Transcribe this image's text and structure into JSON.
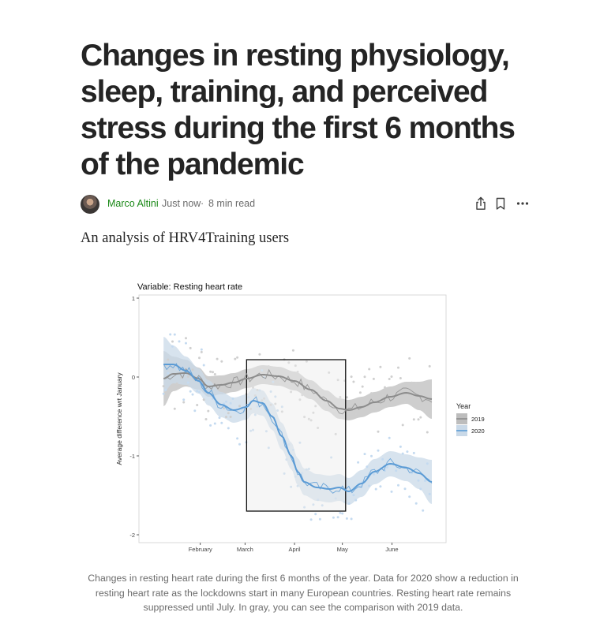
{
  "article": {
    "title": "Changes in resting physiology, sleep, training, and perceived stress during the first 6 months of the pandemic",
    "subtitle": "An analysis of HRV4Training users",
    "author": "Marco Altini",
    "published": "Just now",
    "separator": "·",
    "read_time": "8 min read",
    "caption": "Changes in resting heart rate during the first 6 months of the year. Data for 2020 show a reduction in resting heart rate as the lockdowns start in many European countries. Resting heart rate remains suppressed until July. In gray, you can see the comparison with 2019 data."
  },
  "actions": {
    "share_icon": "share-icon",
    "bookmark_icon": "bookmark-icon",
    "more_icon": "more-icon"
  },
  "chart_data": {
    "type": "line",
    "title": "Variable: Resting heart rate",
    "ylabel": "Average difference wrt January",
    "xlabel": "",
    "ylim": [
      -2,
      1
    ],
    "yticks": [
      1,
      0,
      -1,
      -2
    ],
    "xlim": [
      0,
      176
    ],
    "xticks": [
      {
        "label": "February",
        "x": 31
      },
      {
        "label": "March",
        "x": 59
      },
      {
        "label": "April",
        "x": 90
      },
      {
        "label": "May",
        "x": 120
      },
      {
        "label": "June",
        "x": 151
      }
    ],
    "grid": false,
    "legend": {
      "title": "Year",
      "position": "right"
    },
    "highlight_window": {
      "x": [
        60,
        122
      ],
      "y": [
        -1.7,
        0.22
      ]
    },
    "series": [
      {
        "name": "2019",
        "color": "#8c8c8c",
        "band_color": "#bdbdbd",
        "x": [
          8,
          14,
          22,
          30,
          36,
          44,
          52,
          60,
          70,
          80,
          90,
          100,
          110,
          118,
          124,
          132,
          140,
          150,
          160,
          168,
          176
        ],
        "values": [
          -0.02,
          0.04,
          0.05,
          -0.02,
          -0.12,
          -0.1,
          -0.07,
          -0.02,
          0.03,
          0.01,
          -0.05,
          -0.16,
          -0.3,
          -0.4,
          -0.42,
          -0.38,
          -0.32,
          -0.25,
          -0.2,
          -0.24,
          -0.28
        ],
        "band": [
          0.35,
          0.22,
          0.17,
          0.14,
          0.13,
          0.12,
          0.12,
          0.12,
          0.12,
          0.12,
          0.12,
          0.12,
          0.13,
          0.13,
          0.13,
          0.13,
          0.13,
          0.13,
          0.14,
          0.18,
          0.25
        ]
      },
      {
        "name": "2020",
        "color": "#5b9bd5",
        "band_color": "#c9d9e8",
        "x": [
          8,
          14,
          22,
          30,
          36,
          44,
          52,
          60,
          64,
          70,
          76,
          82,
          88,
          92,
          96,
          104,
          112,
          118,
          124,
          132,
          140,
          150,
          160,
          168,
          176
        ],
        "values": [
          0.16,
          0.16,
          0.08,
          -0.05,
          -0.2,
          -0.35,
          -0.42,
          -0.38,
          -0.3,
          -0.33,
          -0.5,
          -0.75,
          -1.0,
          -1.2,
          -1.33,
          -1.4,
          -1.42,
          -1.4,
          -1.45,
          -1.35,
          -1.2,
          -1.1,
          -1.15,
          -1.22,
          -1.33
        ],
        "band": [
          0.35,
          0.24,
          0.18,
          0.16,
          0.16,
          0.16,
          0.16,
          0.16,
          0.16,
          0.16,
          0.17,
          0.17,
          0.17,
          0.17,
          0.17,
          0.17,
          0.17,
          0.17,
          0.17,
          0.17,
          0.16,
          0.16,
          0.17,
          0.2,
          0.28
        ]
      }
    ]
  }
}
